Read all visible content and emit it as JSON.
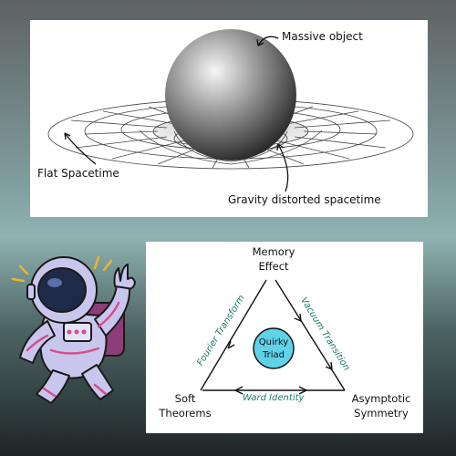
{
  "spacetime_panel": {
    "massive_object_label": "Massive object",
    "flat_label": "Flat Spacetime",
    "distorted_label": "Gravity distorted spacetime"
  },
  "triad_panel": {
    "top_vertex": [
      "Memory",
      "Effect"
    ],
    "left_vertex": [
      "Soft",
      "Theorems"
    ],
    "right_vertex": [
      "Asymptotic",
      "Symmetry"
    ],
    "left_edge": "Fourier Transform",
    "right_edge": "Vacuum Transition",
    "bottom_edge": "Ward Identity",
    "center": [
      "Quirky",
      "Triad"
    ]
  },
  "colors": {
    "edge_label": "#1e7a66",
    "center_circle": "#5fd2e8",
    "astronaut_suit": "#c9c6ee",
    "astronaut_stripe": "#d44f8e"
  }
}
